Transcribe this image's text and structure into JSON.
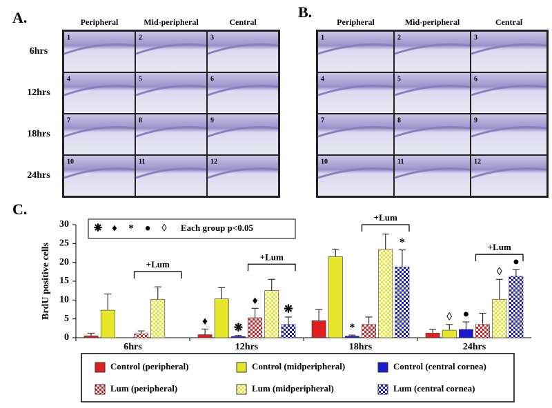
{
  "panel_a": {
    "label": "A.",
    "columns": [
      "Peripheral",
      "Mid-peripheral",
      "Central"
    ],
    "rows": [
      "6hrs",
      "12hrs",
      "18hrs",
      "24hrs"
    ],
    "cells": [
      "1",
      "2",
      "3",
      "4",
      "5",
      "6",
      "7",
      "8",
      "9",
      "10",
      "11",
      "12"
    ]
  },
  "panel_b": {
    "label": "B.",
    "columns": [
      "Peripheral",
      "Mid-peripheral",
      "Central"
    ],
    "cells": [
      "1",
      "2",
      "3",
      "4",
      "5",
      "6",
      "7",
      "8",
      "9",
      "10",
      "11",
      "12"
    ]
  },
  "chart_data": {
    "type": "bar",
    "panel_label": "C.",
    "y_label": "BrdU positive cells",
    "categories": [
      "6hrs",
      "12hrs",
      "18hrs",
      "24hrs"
    ],
    "series": [
      {
        "name": "Control (peripheral)",
        "color": "#e02020",
        "pattern": "solid",
        "values": [
          0.5,
          0.8,
          4.5,
          1.2
        ],
        "errors": [
          0.7,
          1.5,
          3,
          1
        ]
      },
      {
        "name": "Control (midperipheral)",
        "color": "#e6e62a",
        "pattern": "solid",
        "values": [
          7.3,
          10.3,
          21.5,
          2
        ],
        "errors": [
          4.3,
          3,
          2,
          1.5
        ]
      },
      {
        "name": "Control (central cornea)",
        "color": "#1a1ad0",
        "pattern": "solid",
        "values": [
          null,
          0.3,
          0.4,
          2.2
        ],
        "errors": [
          null,
          0.3,
          0.3,
          2
        ]
      },
      {
        "name": "Lum (peripheral)",
        "color": "#e02020",
        "pattern": "check",
        "values": [
          1,
          5.3,
          3.5,
          3.5
        ],
        "errors": [
          0.8,
          2.5,
          2,
          3
        ]
      },
      {
        "name": "Lum (midperipheral)",
        "color": "#e6e62a",
        "pattern": "check",
        "values": [
          10.2,
          12.5,
          23.5,
          10.2
        ],
        "errors": [
          3.3,
          3,
          4,
          5.3
        ]
      },
      {
        "name": "Lum (central cornea)",
        "color": "#1a1ad0",
        "pattern": "check",
        "values": [
          null,
          3.5,
          18.8,
          16.3
        ],
        "errors": [
          null,
          2,
          4.5,
          1.8
        ]
      }
    ],
    "ylim": [
      0,
      30
    ],
    "yticks": [
      0,
      5,
      10,
      15,
      20,
      25,
      30
    ],
    "significance_key": {
      "symbols": [
        "❋",
        "♦",
        "*",
        "●",
        "◊"
      ],
      "label": "Each group p<0.05"
    },
    "markers": [
      {
        "text": "♦",
        "series": 0,
        "category": 1
      },
      {
        "text": "❋",
        "series": 2,
        "category": 1
      },
      {
        "text": "♦",
        "series": 3,
        "category": 1
      },
      {
        "text": "❋",
        "series": 5,
        "category": 1
      },
      {
        "text": "*",
        "series": 2,
        "category": 2
      },
      {
        "text": "*",
        "series": 5,
        "category": 2
      },
      {
        "text": "◊",
        "series": 1,
        "category": 3
      },
      {
        "text": "●",
        "series": 2,
        "category": 3
      },
      {
        "text": "◊",
        "series": 4,
        "category": 3
      },
      {
        "text": "●",
        "series": 5,
        "category": 3
      }
    ],
    "bracket_label": "+Lum"
  }
}
